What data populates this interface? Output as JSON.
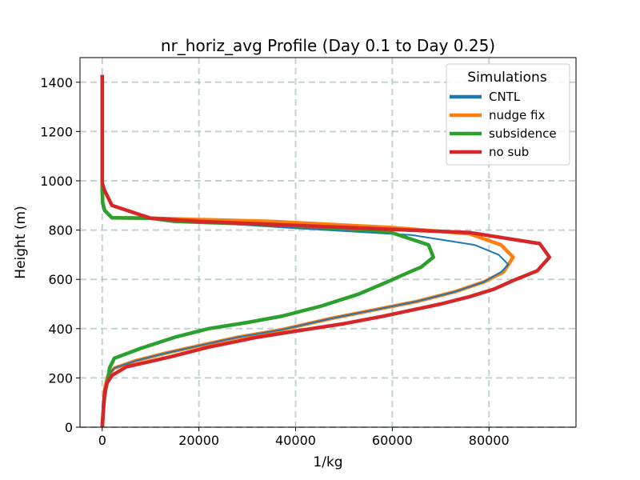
{
  "chart_data": {
    "type": "line",
    "title": "nr_horiz_avg Profile (Day 0.1 to Day 0.25)",
    "xlabel": "1/kg",
    "ylabel": "Height (m)",
    "xlim": [
      -4600,
      98000
    ],
    "ylim": [
      0,
      1500
    ],
    "xticks": [
      0,
      20000,
      40000,
      60000,
      80000
    ],
    "yticks": [
      0,
      200,
      400,
      600,
      800,
      1000,
      1200,
      1400
    ],
    "grid": true,
    "legend": {
      "title": "Simulations",
      "placement": "top-right"
    },
    "series": [
      {
        "name": "CNTL",
        "color": "#1f77b4",
        "points": [
          [
            0,
            0
          ],
          [
            100,
            30
          ],
          [
            200,
            60
          ],
          [
            300,
            90
          ],
          [
            400,
            120
          ],
          [
            500,
            150
          ],
          [
            800,
            180
          ],
          [
            1200,
            210
          ],
          [
            2500,
            240
          ],
          [
            7000,
            270
          ],
          [
            13000,
            300
          ],
          [
            21000,
            335
          ],
          [
            28000,
            365
          ],
          [
            37000,
            395
          ],
          [
            47000,
            440
          ],
          [
            56000,
            475
          ],
          [
            65000,
            510
          ],
          [
            73000,
            550
          ],
          [
            79000,
            590
          ],
          [
            82500,
            630
          ],
          [
            84000,
            660
          ],
          [
            82000,
            700
          ],
          [
            77000,
            740
          ],
          [
            64000,
            780
          ],
          [
            38000,
            810
          ],
          [
            10000,
            845
          ],
          [
            2000,
            850
          ],
          [
            500,
            880
          ],
          [
            100,
            910
          ],
          [
            0,
            960
          ],
          [
            0,
            1200
          ],
          [
            0,
            1430
          ]
        ]
      },
      {
        "name": "nudge fix",
        "color": "#ff7f0e",
        "points": [
          [
            0,
            0
          ],
          [
            100,
            30
          ],
          [
            200,
            60
          ],
          [
            300,
            90
          ],
          [
            400,
            120
          ],
          [
            500,
            150
          ],
          [
            800,
            180
          ],
          [
            1200,
            210
          ],
          [
            2500,
            240
          ],
          [
            7000,
            270
          ],
          [
            13000,
            300
          ],
          [
            21000,
            335
          ],
          [
            28000,
            365
          ],
          [
            37000,
            395
          ],
          [
            47000,
            440
          ],
          [
            56000,
            475
          ],
          [
            65000,
            510
          ],
          [
            73000,
            550
          ],
          [
            79000,
            590
          ],
          [
            83000,
            630
          ],
          [
            85000,
            690
          ],
          [
            82500,
            740
          ],
          [
            76000,
            785
          ],
          [
            60000,
            810
          ],
          [
            35000,
            835
          ],
          [
            10000,
            848
          ],
          [
            2000,
            850
          ],
          [
            500,
            880
          ],
          [
            100,
            910
          ],
          [
            0,
            960
          ],
          [
            0,
            1200
          ],
          [
            0,
            1430
          ]
        ]
      },
      {
        "name": "subsidence",
        "color": "#2ca02c",
        "points": [
          [
            0,
            0
          ],
          [
            100,
            30
          ],
          [
            200,
            60
          ],
          [
            300,
            90
          ],
          [
            500,
            120
          ],
          [
            700,
            150
          ],
          [
            1000,
            180
          ],
          [
            1300,
            210
          ],
          [
            1500,
            240
          ],
          [
            2500,
            280
          ],
          [
            8000,
            320
          ],
          [
            15000,
            365
          ],
          [
            22000,
            400
          ],
          [
            30000,
            425
          ],
          [
            37000,
            450
          ],
          [
            45000,
            490
          ],
          [
            53000,
            540
          ],
          [
            59000,
            590
          ],
          [
            63000,
            625
          ],
          [
            66000,
            650
          ],
          [
            68500,
            690
          ],
          [
            67500,
            740
          ],
          [
            59000,
            795
          ],
          [
            38000,
            820
          ],
          [
            15000,
            835
          ],
          [
            10000,
            848
          ],
          [
            2000,
            850
          ],
          [
            500,
            880
          ],
          [
            100,
            910
          ],
          [
            0,
            960
          ],
          [
            0,
            1200
          ],
          [
            0,
            1430
          ]
        ]
      },
      {
        "name": "no sub",
        "color": "#d62728",
        "points": [
          [
            0,
            0
          ],
          [
            100,
            30
          ],
          [
            200,
            60
          ],
          [
            300,
            90
          ],
          [
            400,
            120
          ],
          [
            600,
            150
          ],
          [
            1000,
            180
          ],
          [
            2000,
            210
          ],
          [
            5000,
            245
          ],
          [
            14000,
            285
          ],
          [
            22000,
            325
          ],
          [
            32000,
            365
          ],
          [
            40000,
            390
          ],
          [
            50000,
            420
          ],
          [
            58000,
            450
          ],
          [
            64000,
            475
          ],
          [
            70000,
            500
          ],
          [
            76000,
            530
          ],
          [
            81000,
            560
          ],
          [
            85000,
            595
          ],
          [
            90000,
            635
          ],
          [
            92500,
            690
          ],
          [
            90500,
            745
          ],
          [
            76000,
            790
          ],
          [
            45000,
            815
          ],
          [
            20000,
            835
          ],
          [
            10000,
            848
          ],
          [
            2000,
            900
          ],
          [
            500,
            960
          ],
          [
            0,
            990
          ],
          [
            0,
            1200
          ],
          [
            0,
            1430
          ]
        ]
      }
    ]
  }
}
